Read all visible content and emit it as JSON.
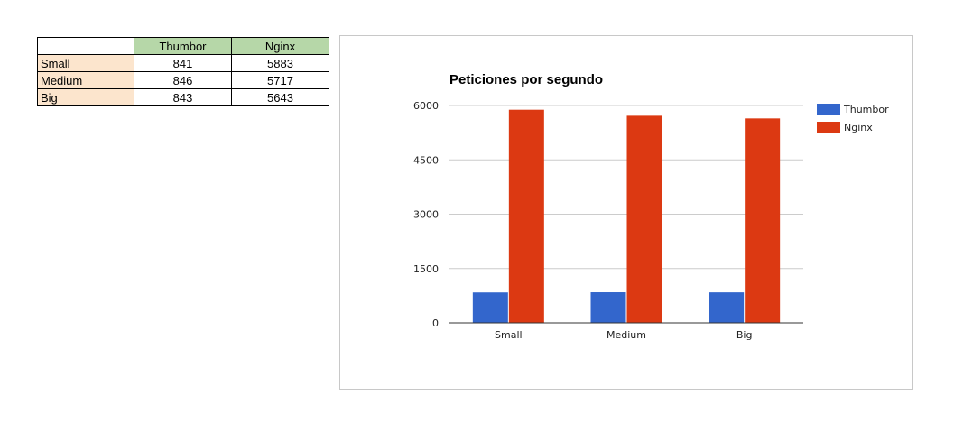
{
  "table": {
    "headers": [
      "",
      "Thumbor",
      "Nginx"
    ],
    "rows": [
      {
        "label": "Small",
        "values": [
          "841",
          "5883"
        ]
      },
      {
        "label": "Medium",
        "values": [
          "846",
          "5717"
        ]
      },
      {
        "label": "Big",
        "values": [
          "843",
          "5643"
        ]
      }
    ]
  },
  "chart_data": {
    "type": "bar",
    "title": "Peticiones por segundo",
    "categories": [
      "Small",
      "Medium",
      "Big"
    ],
    "series": [
      {
        "name": "Thumbor",
        "values": [
          841,
          846,
          843
        ],
        "color": "#3366cc"
      },
      {
        "name": "Nginx",
        "values": [
          5883,
          5717,
          5643
        ],
        "color": "#dc3912"
      }
    ],
    "ylim": [
      0,
      6000
    ],
    "yticks": [
      0,
      1500,
      3000,
      4500,
      6000
    ],
    "grid": true,
    "legend": "right"
  }
}
